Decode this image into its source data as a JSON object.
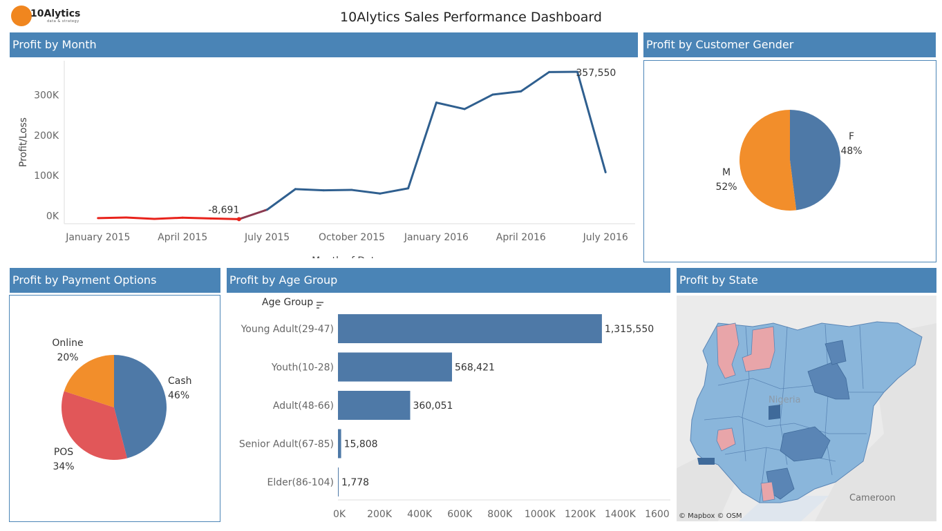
{
  "header": {
    "logo_text": "10Alytics",
    "logo_sub": "data & strategy",
    "title": "10Alytics Sales Performance Dashboard"
  },
  "panels": {
    "profit_by_month": "Profit by Month",
    "profit_by_gender": "Profit by Customer Gender",
    "profit_by_payment": "Profit by Payment Options",
    "profit_by_age": "Profit by Age Group",
    "profit_by_state": "Profit by State"
  },
  "colors": {
    "header_blue": "#4a84b6",
    "line_blue": "#2f5f8f",
    "loss_red": "#e8221b",
    "bar_blue": "#4e79a7",
    "orange": "#f28e2b",
    "red": "#e15759",
    "map_blue": "#8ab6db",
    "map_dark": "#5a85b5",
    "map_pink": "#e8a5a9"
  },
  "chart_data": [
    {
      "type": "line",
      "title": "Profit by Month",
      "xlabel": "Month of Date",
      "ylabel": "Profit/Loss",
      "x": [
        "2015-01",
        "2015-02",
        "2015-03",
        "2015-04",
        "2015-05",
        "2015-06",
        "2015-07",
        "2015-08",
        "2015-09",
        "2015-10",
        "2015-11",
        "2015-12",
        "2016-01",
        "2016-02",
        "2016-03",
        "2016-04",
        "2016-05",
        "2016-06",
        "2016-07"
      ],
      "values": [
        -6000,
        -4500,
        -8000,
        -5000,
        -7000,
        -8691,
        15000,
        66000,
        63000,
        64000,
        55000,
        68000,
        281000,
        265000,
        301000,
        309000,
        357000,
        357550,
        108000
      ],
      "x_ticks": [
        "January 2015",
        "April 2015",
        "July 2015",
        "October 2015",
        "January 2016",
        "April 2016",
        "July 2016"
      ],
      "y_ticks": [
        "0K",
        "100K",
        "200K",
        "300K"
      ],
      "ylim": [
        -20000,
        385000
      ],
      "annotations": [
        "-8,691",
        "357,550"
      ],
      "grid": false
    },
    {
      "type": "pie",
      "title": "Profit by Customer Gender",
      "labels": [
        "F",
        "M"
      ],
      "values": [
        48,
        52
      ],
      "display": [
        "48%",
        "52%"
      ]
    },
    {
      "type": "pie",
      "title": "Profit by Payment Options",
      "labels": [
        "Cash",
        "POS",
        "Online"
      ],
      "values": [
        46,
        34,
        20
      ],
      "display": [
        "46%",
        "34%",
        "20%"
      ]
    },
    {
      "type": "bar",
      "orientation": "horizontal",
      "title": "Profit by Age Group",
      "axis_title": "Age Group",
      "categories": [
        "Young Adult(29-47)",
        "Youth(10-28)",
        "Adult(48-66)",
        "Senior Adult(67-85)",
        "Elder(86-104)"
      ],
      "values": [
        1315550,
        568421,
        360051,
        15808,
        1778
      ],
      "labels": [
        "1,315,550",
        "568,421",
        "360,051",
        "15,808",
        "1,778"
      ],
      "x_ticks": [
        "0K",
        "200K",
        "400K",
        "600K",
        "800K",
        "1000K",
        "1200K",
        "1400K",
        "1600K"
      ],
      "xlim": [
        0,
        1650000
      ]
    }
  ],
  "map": {
    "country_label": "Nigeria",
    "neighbor_label": "Cameroon",
    "attribution": "© Mapbox © OSM"
  }
}
